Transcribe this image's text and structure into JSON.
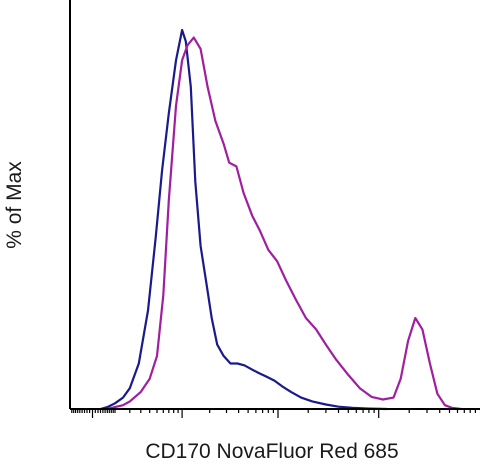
{
  "chart_data": {
    "type": "line",
    "title": "",
    "xlabel": "CD170 NovaFluor Red 685",
    "ylabel": "% of Max",
    "x_scale": "log",
    "xlim": [
      -100,
      1000000
    ],
    "ylim": [
      0,
      100
    ],
    "grid": false,
    "legend": "none",
    "tick_labels_shown": false,
    "x_major_ticks": [
      0,
      1000,
      10000,
      100000
    ],
    "x_minor_ticks": [
      -90,
      -80,
      -70,
      -60,
      -50,
      -40,
      -30,
      -20,
      -10,
      10,
      20,
      30,
      40,
      50,
      60,
      70,
      80,
      90,
      100,
      200,
      300,
      400,
      500,
      600,
      700,
      800,
      900,
      2000,
      3000,
      4000,
      5000,
      6000,
      7000,
      8000,
      9000,
      20000,
      30000,
      40000,
      50000,
      60000,
      70000,
      80000,
      90000,
      200000,
      300000,
      400000,
      500000,
      600000,
      700000,
      800000,
      900000
    ],
    "series": [
      {
        "color": "#1a1a8c",
        "x": [
          30,
          60,
          100,
          150,
          200,
          280,
          380,
          480,
          580,
          700,
          850,
          1000,
          1100,
          1250,
          1400,
          1600,
          1850,
          2100,
          2400,
          2800,
          3300,
          3900,
          4600,
          5400,
          6400,
          7700,
          9200,
          11000,
          13500,
          17000,
          22000,
          30000,
          40000,
          55000,
          80000,
          120000
        ],
        "y": [
          0,
          0.5,
          1.5,
          3,
          5.5,
          12,
          26,
          45,
          63,
          78,
          92,
          100,
          97,
          85,
          60,
          43,
          33,
          24,
          17,
          14,
          12,
          12,
          11.5,
          10.5,
          9.5,
          8.5,
          7.5,
          6,
          4.5,
          3,
          2,
          1.2,
          0.6,
          0.3,
          0.1,
          0
        ]
      },
      {
        "color": "#a01ea0",
        "x": [
          60,
          100,
          150,
          200,
          300,
          400,
          500,
          600,
          700,
          850,
          1000,
          1150,
          1350,
          1600,
          1900,
          2300,
          2800,
          3200,
          3800,
          4500,
          5500,
          6600,
          8000,
          9800,
          12000,
          15000,
          19000,
          24000,
          30000,
          38000,
          50000,
          65000,
          85000,
          110000,
          140000,
          165000,
          195000,
          230000,
          270000,
          320000,
          380000,
          450000,
          530000,
          650000
        ],
        "y": [
          0,
          0.5,
          1,
          2,
          4.5,
          8,
          14,
          30,
          55,
          80,
          92,
          96,
          98,
          95,
          85,
          76,
          70,
          65,
          64,
          57,
          51,
          47,
          42,
          39,
          34,
          29,
          24,
          21,
          17,
          13,
          9,
          5.5,
          3.2,
          2.5,
          3,
          8,
          18,
          24,
          21,
          12,
          4,
          1,
          0.3,
          0
        ]
      }
    ]
  }
}
